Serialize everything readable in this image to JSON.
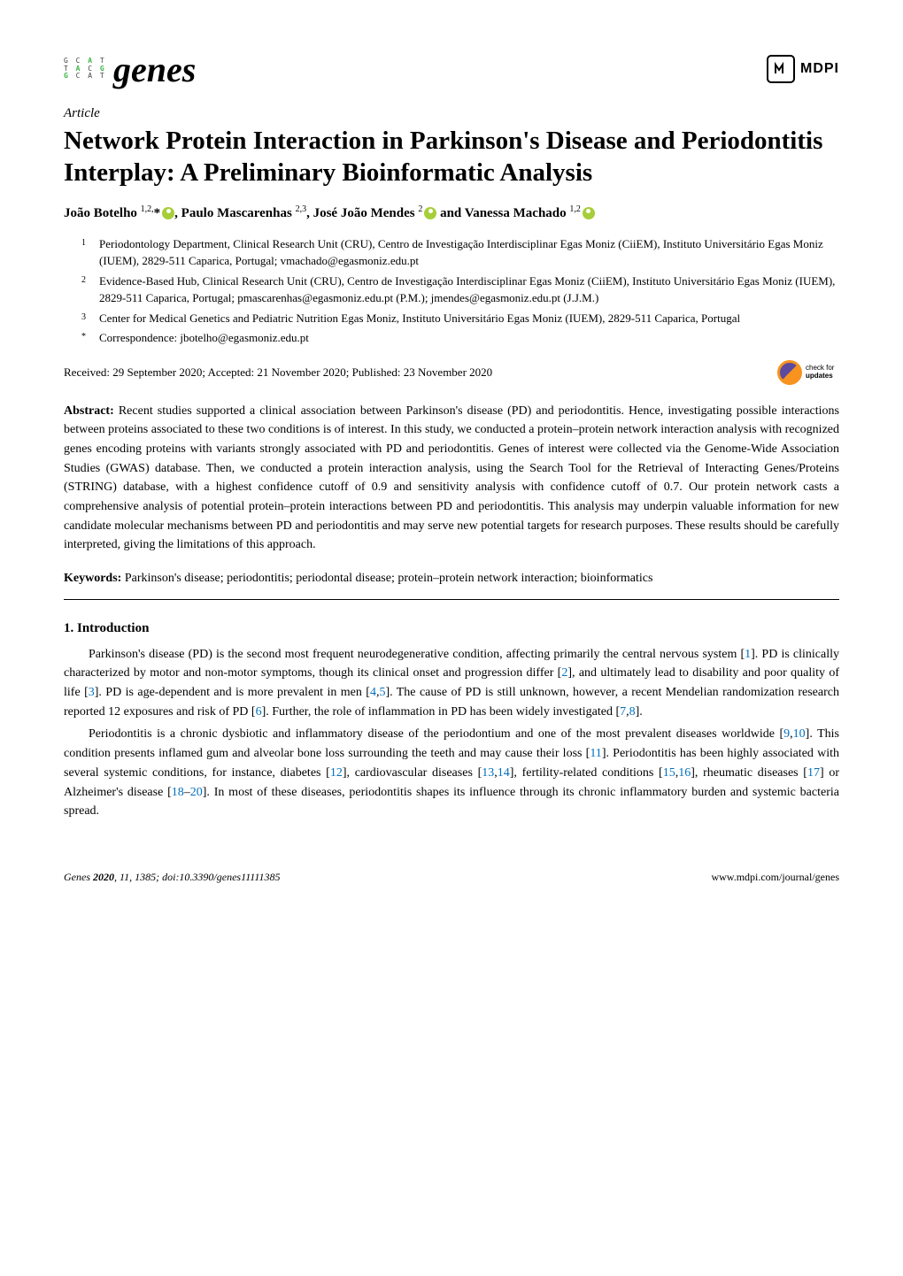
{
  "header": {
    "journal_name": "genes",
    "publisher": "MDPI",
    "logo_rows": [
      "G C A T",
      "T A C G",
      "G C A T"
    ]
  },
  "article": {
    "type": "Article",
    "title": "Network Protein Interaction in Parkinson's Disease and Periodontitis Interplay: A Preliminary Bioinformatic Analysis",
    "authors_html": "João Botelho <sup>1,2,</sup>* , Paulo Mascarenhas <sup>2,3</sup>, José João Mendes <sup>2</sup> and Vanessa Machado <sup>1,2</sup>",
    "author_segments": [
      {
        "text": "João Botelho ",
        "sup": "1,2,",
        "star": true,
        "orcid": true
      },
      {
        "text": ", Paulo Mascarenhas ",
        "sup": "2,3",
        "star": false,
        "orcid": false
      },
      {
        "text": ", José João Mendes ",
        "sup": "2",
        "star": false,
        "orcid": true
      },
      {
        "text": " and Vanessa Machado ",
        "sup": "1,2",
        "star": false,
        "orcid": true
      }
    ],
    "affiliations": [
      {
        "num": "1",
        "text": "Periodontology Department, Clinical Research Unit (CRU), Centro de Investigação Interdisciplinar Egas Moniz (CiiEM), Instituto Universitário Egas Moniz (IUEM), 2829-511 Caparica, Portugal; vmachado@egasmoniz.edu.pt"
      },
      {
        "num": "2",
        "text": "Evidence-Based Hub, Clinical Research Unit (CRU), Centro de Investigação Interdisciplinar Egas Moniz (CiiEM), Instituto Universitário Egas Moniz (IUEM), 2829-511 Caparica, Portugal; pmascarenhas@egasmoniz.edu.pt (P.M.); jmendes@egasmoniz.edu.pt (J.J.M.)"
      },
      {
        "num": "3",
        "text": "Center for Medical Genetics and Pediatric Nutrition Egas Moniz, Instituto Universitário Egas Moniz (IUEM), 2829-511 Caparica, Portugal"
      },
      {
        "num": "*",
        "text": "Correspondence: jbotelho@egasmoniz.edu.pt"
      }
    ],
    "dates": "Received: 29 September 2020; Accepted: 21 November 2020; Published: 23 November 2020",
    "check_updates_label": "check for",
    "check_updates_label2": "updates",
    "abstract_label": "Abstract:",
    "abstract": "Recent studies supported a clinical association between Parkinson's disease (PD) and periodontitis. Hence, investigating possible interactions between proteins associated to these two conditions is of interest. In this study, we conducted a protein–protein network interaction analysis with recognized genes encoding proteins with variants strongly associated with PD and periodontitis. Genes of interest were collected via the Genome-Wide Association Studies (GWAS) database. Then, we conducted a protein interaction analysis, using the Search Tool for the Retrieval of Interacting Genes/Proteins (STRING) database, with a highest confidence cutoff of 0.9 and sensitivity analysis with confidence cutoff of 0.7. Our protein network casts a comprehensive analysis of potential protein–protein interactions between PD and periodontitis. This analysis may underpin valuable information for new candidate molecular mechanisms between PD and periodontitis and may serve new potential targets for research purposes. These results should be carefully interpreted, giving the limitations of this approach.",
    "keywords_label": "Keywords:",
    "keywords": "Parkinson's disease; periodontitis; periodontal disease; protein–protein network interaction; bioinformatics"
  },
  "body": {
    "section_heading": "1. Introduction",
    "para1": {
      "pre": "Parkinson's disease (PD) is the second most frequent neurodegenerative condition, affecting primarily the central nervous system [",
      "r1": "1",
      "m1": "]. PD is clinically characterized by motor and non-motor symptoms, though its clinical onset and progression differ [",
      "r2": "2",
      "m2": "], and ultimately lead to disability and poor quality of life [",
      "r3": "3",
      "m3": "]. PD is age-dependent and is more prevalent in men [",
      "r4": "4",
      "c1": ",",
      "r5": "5",
      "m4": "]. The cause of PD is still unknown, however, a recent Mendelian randomization research reported 12 exposures and risk of PD [",
      "r6": "6",
      "m5": "]. Further, the role of inflammation in PD has been widely investigated [",
      "r7": "7",
      "c2": ",",
      "r8": "8",
      "end": "]."
    },
    "para2": {
      "pre": "Periodontitis is a chronic dysbiotic and inflammatory disease of the periodontium and one of the most prevalent diseases worldwide [",
      "r1": "9",
      "c1": ",",
      "r2": "10",
      "m1": "]. This condition presents inflamed gum and alveolar bone loss surrounding the teeth and may cause their loss [",
      "r3": "11",
      "m2": "]. Periodontitis has been highly associated with several systemic conditions, for instance, diabetes [",
      "r4": "12",
      "m3": "], cardiovascular diseases [",
      "r5": "13",
      "c2": ",",
      "r6": "14",
      "m4": "], fertility-related conditions [",
      "r7": "15",
      "c3": ",",
      "r8": "16",
      "m5": "], rheumatic diseases [",
      "r9": "17",
      "m6": "] or Alzheimer's disease [",
      "r10": "18",
      "dash": "–",
      "r11": "20",
      "end": "]. In most of these diseases, periodontitis shapes its influence through its chronic inflammatory burden and systemic bacteria spread."
    }
  },
  "footer": {
    "left": "Genes 2020, 11, 1385; doi:10.3390/genes11111385",
    "right": "www.mdpi.com/journal/genes"
  },
  "colors": {
    "ref_link": "#0070c0",
    "orcid_green": "#a6ce39",
    "check_orange": "#f7931e",
    "check_purple": "#5b4a9f",
    "logo_green": "#3cb44b"
  }
}
